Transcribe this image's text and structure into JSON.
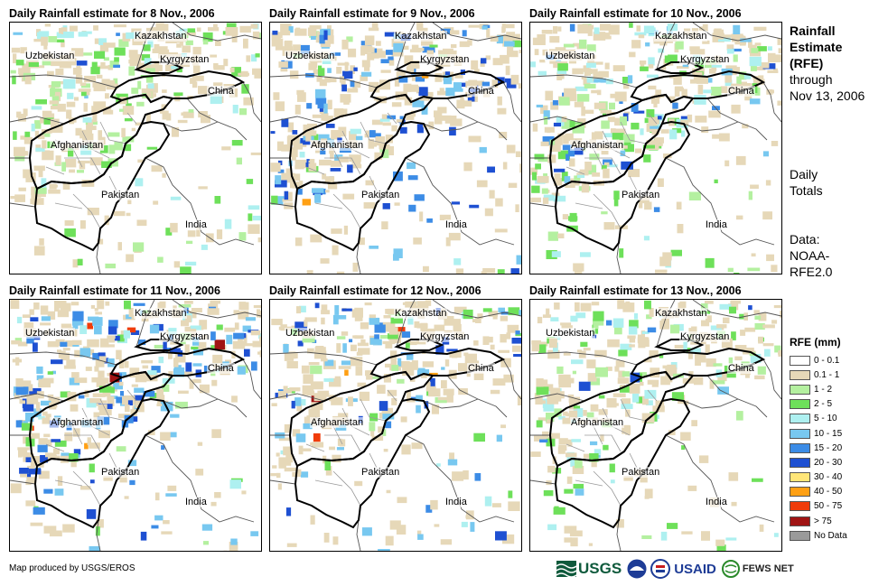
{
  "panels": [
    {
      "title": "Daily Rainfall estimate for 8 Nov., 2006"
    },
    {
      "title": "Daily Rainfall estimate for 9 Nov., 2006"
    },
    {
      "title": "Daily Rainfall estimate for 10 Nov., 2006"
    },
    {
      "title": "Daily Rainfall estimate for 11 Nov., 2006"
    },
    {
      "title": "Daily Rainfall estimate for 12 Nov., 2006"
    },
    {
      "title": "Daily Rainfall estimate for 13 Nov., 2006"
    }
  ],
  "map_labels": {
    "kazakhstan": "Kazakhstan",
    "uzbekistan": "Uzbekistan",
    "kyrgyzstan": "Kyrgyzstan",
    "china": "China",
    "afghanistan": "Afghanistan",
    "pakistan": "Pakistan",
    "india": "India"
  },
  "sidebar": {
    "title_lines": [
      "Rainfall",
      "Estimate",
      "(RFE)"
    ],
    "through_lines": [
      "through",
      "Nov 13, 2006"
    ],
    "totals_lines": [
      "Daily",
      "Totals"
    ],
    "data_lines": [
      "Data:",
      "NOAA-",
      "RFE2.0"
    ]
  },
  "legend": {
    "title": "RFE (mm)",
    "items": [
      {
        "label": "0 - 0.1",
        "color": "#ffffff"
      },
      {
        "label": "0.1 - 1",
        "color": "#e6d8b8"
      },
      {
        "label": "1 - 2",
        "color": "#b4f0a0"
      },
      {
        "label": "2 - 5",
        "color": "#6ee05a"
      },
      {
        "label": "5 - 10",
        "color": "#aef0f0"
      },
      {
        "label": "10 - 15",
        "color": "#78c8f0"
      },
      {
        "label": "15 - 20",
        "color": "#3c8ce6"
      },
      {
        "label": "20 - 30",
        "color": "#1e50d2"
      },
      {
        "label": "30 - 40",
        "color": "#ffe678"
      },
      {
        "label": "40 - 50",
        "color": "#ffa014"
      },
      {
        "label": "50 - 75",
        "color": "#f03c0a"
      },
      {
        "label": "> 75",
        "color": "#a01414"
      },
      {
        "label": "No Data",
        "color": "#9a9a9a"
      }
    ]
  },
  "credit": "Map produced by USGS/EROS",
  "logos": {
    "usgs": "USGS",
    "usaid": "USAID",
    "fews": "FEWS NET"
  },
  "rain_intensity": [
    {
      "tan": 0.8,
      "green": 0.6,
      "blue": 0.05,
      "hot": 0
    },
    {
      "tan": 0.9,
      "green": 0.6,
      "blue": 0.8,
      "hot": 0.05
    },
    {
      "tan": 0.9,
      "green": 0.8,
      "blue": 0.3,
      "hot": 0
    },
    {
      "tan": 0.9,
      "green": 0.8,
      "blue": 0.9,
      "hot": 0.4
    },
    {
      "tan": 0.7,
      "green": 0.6,
      "blue": 0.6,
      "hot": 0.3
    },
    {
      "tan": 0.7,
      "green": 0.7,
      "blue": 0.15,
      "hot": 0.05
    }
  ]
}
